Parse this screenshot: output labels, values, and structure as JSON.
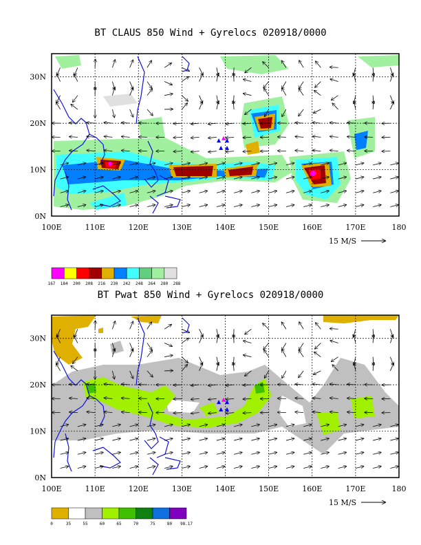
{
  "chart_data": [
    {
      "type": "heatmap",
      "title": "BT CLAUS 850 Wind + Gyrelocs 020918/0000",
      "x_ticks": [
        "100E",
        "110E",
        "120E",
        "130E",
        "140E",
        "150E",
        "160E",
        "170E",
        "180"
      ],
      "y_ticks": [
        "0N",
        "10N",
        "20N",
        "30N"
      ],
      "xlim": [
        100,
        180
      ],
      "ylim": [
        0,
        35
      ],
      "vector_reference": "15 M/S",
      "colorbar": {
        "labels": [
          "167",
          "184",
          "200",
          "208",
          "216",
          "230",
          "242",
          "248",
          "264",
          "280",
          "288"
        ],
        "colors": [
          "#ff00ff",
          "#ffff00",
          "#ff0000",
          "#a00000",
          "#e0b000",
          "#0080ff",
          "#40ffff",
          "#60d080",
          "#a0f0a0",
          "#e0e0e0"
        ]
      },
      "gyre_locations": [
        {
          "lon": 138.5,
          "lat": 16.3,
          "color": "#0000ff"
        },
        {
          "lon": 139.6,
          "lat": 16.8,
          "color": "#ff00ff"
        },
        {
          "lon": 140.4,
          "lat": 16.3,
          "color": "#0000ff"
        },
        {
          "lon": 139.0,
          "lat": 14.7,
          "color": "#0000ff"
        },
        {
          "lon": 140.4,
          "lat": 14.7,
          "color": "#0000ff"
        }
      ]
    },
    {
      "type": "heatmap",
      "title": "BT Pwat 850 Wind + Gyrelocs 020918/0000",
      "x_ticks": [
        "100E",
        "110E",
        "120E",
        "130E",
        "140E",
        "150E",
        "160E",
        "170E",
        "180"
      ],
      "y_ticks": [
        "0N",
        "10N",
        "20N",
        "30N"
      ],
      "xlim": [
        100,
        180
      ],
      "ylim": [
        0,
        35
      ],
      "vector_reference": "15 M/S",
      "colorbar": {
        "labels": [
          "0",
          "35",
          "55",
          "60",
          "65",
          "70",
          "75",
          "80",
          "98.17"
        ],
        "colors": [
          "#e0b000",
          "#ffffff",
          "#c0c0c0",
          "#a0f000",
          "#40c000",
          "#108010",
          "#1070e0",
          "#8000c0"
        ]
      },
      "gyre_locations": [
        {
          "lon": 138.5,
          "lat": 16.3,
          "color": "#0000ff"
        },
        {
          "lon": 139.6,
          "lat": 16.8,
          "color": "#ff00ff"
        },
        {
          "lon": 140.4,
          "lat": 16.3,
          "color": "#0000ff"
        },
        {
          "lon": 139.0,
          "lat": 14.7,
          "color": "#0000ff"
        },
        {
          "lon": 140.4,
          "lat": 14.7,
          "color": "#0000ff"
        }
      ]
    }
  ]
}
